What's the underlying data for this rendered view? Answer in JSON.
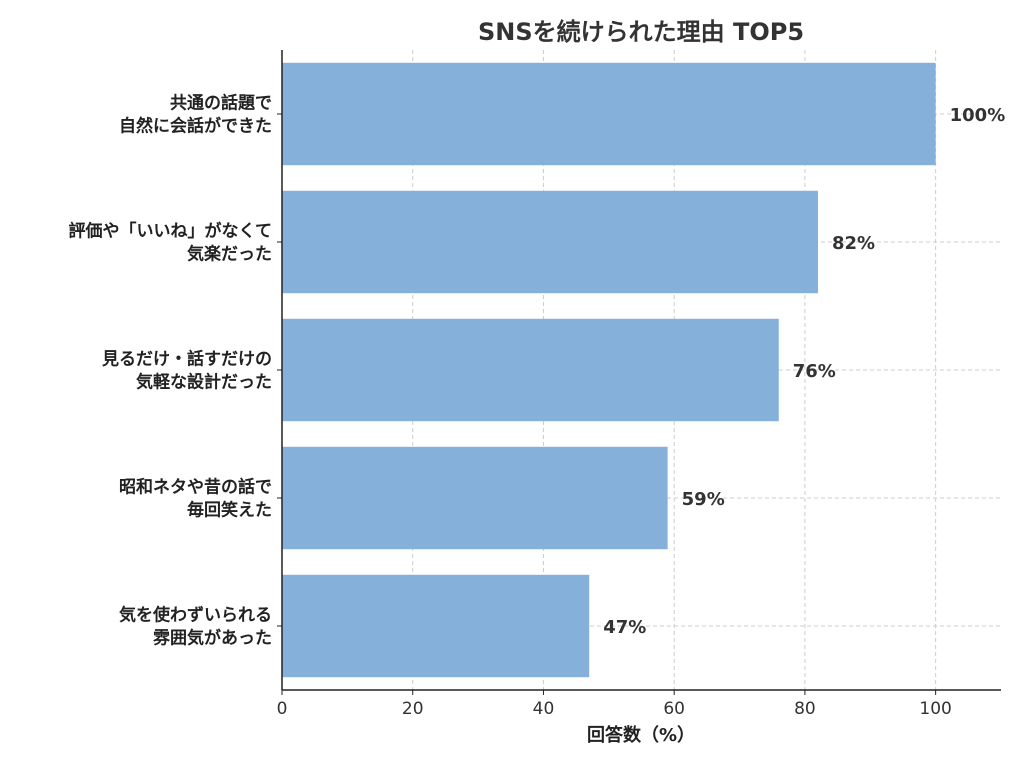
{
  "chart_data": {
    "type": "bar",
    "orientation": "horizontal",
    "title": "SNSを続けられた理由 TOP5",
    "xlabel": "回答数（%）",
    "ylabel": "",
    "xlim": [
      0,
      110
    ],
    "xticks": [
      0,
      20,
      40,
      60,
      80,
      100
    ],
    "grid": true,
    "bar_color": "#85b0d9",
    "categories": [
      [
        "共通の話題で",
        "自然に会話ができた"
      ],
      [
        "評価や「いいね」がなくて",
        "気楽だった"
      ],
      [
        "見るだけ・話すだけの",
        "気軽な設計だった"
      ],
      [
        "昭和ネタや昔の話で",
        "毎回笑えた"
      ],
      [
        "気を使わずいられる",
        "雰囲気があった"
      ]
    ],
    "values": [
      100,
      82,
      76,
      59,
      47
    ],
    "value_labels": [
      "100%",
      "82%",
      "76%",
      "59%",
      "47%"
    ]
  }
}
